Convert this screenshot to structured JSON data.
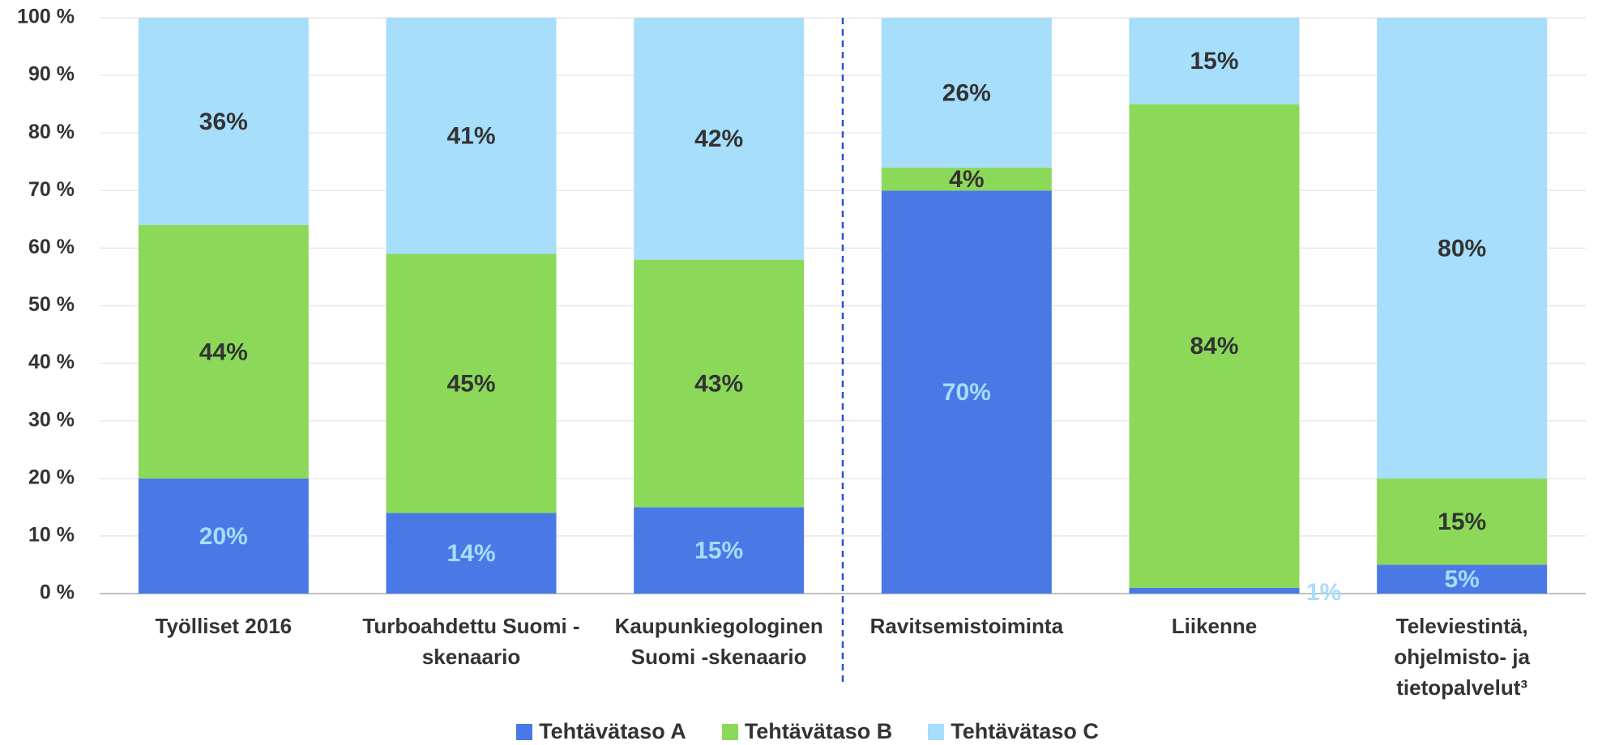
{
  "chart_data": {
    "type": "stacked_bar",
    "categories": [
      "Työlliset 2016",
      "Turboahdettu Suomi -skenaario",
      "Kaupunkiegologinen Suomi -skenaario",
      "Ravitsemistoiminta",
      "Liikenne",
      "Televiestintä, ohjelmisto- ja tietopalvelut³"
    ],
    "series": [
      {
        "name": "Tehtävätaso A",
        "color": "#4a79e6",
        "label_color": "#a6defc",
        "values": [
          20,
          14,
          15,
          70,
          1,
          5
        ],
        "value_labels": [
          "20%",
          "14%",
          "15%",
          "70%",
          "1%",
          "5%"
        ]
      },
      {
        "name": "Tehtävätaso B",
        "color": "#8cd95a",
        "label_color": "#333333",
        "values": [
          44,
          45,
          43,
          4,
          84,
          15
        ],
        "value_labels": [
          "44%",
          "45%",
          "43%",
          "4%",
          "84%",
          "15%"
        ]
      },
      {
        "name": "Tehtävätaso C",
        "color": "#a6defc",
        "label_color": "#333333",
        "values": [
          36,
          41,
          42,
          26,
          15,
          80
        ],
        "value_labels": [
          "36%",
          "41%",
          "42%",
          "26%",
          "15%",
          "80%"
        ]
      }
    ],
    "ylim": [
      0,
      100
    ],
    "yticks": [
      {
        "value": 0,
        "label": "0 %"
      },
      {
        "value": 10,
        "label": "10 %"
      },
      {
        "value": 20,
        "label": "20 %"
      },
      {
        "value": 30,
        "label": "30 %"
      },
      {
        "value": 40,
        "label": "40 %"
      },
      {
        "value": 50,
        "label": "50 %"
      },
      {
        "value": 60,
        "label": "60 %"
      },
      {
        "value": 70,
        "label": "70 %"
      },
      {
        "value": 80,
        "label": "80 %"
      },
      {
        "value": 90,
        "label": "90 %"
      },
      {
        "value": 100,
        "label": "100 %"
      }
    ],
    "grid": true,
    "legend": "bottom"
  }
}
